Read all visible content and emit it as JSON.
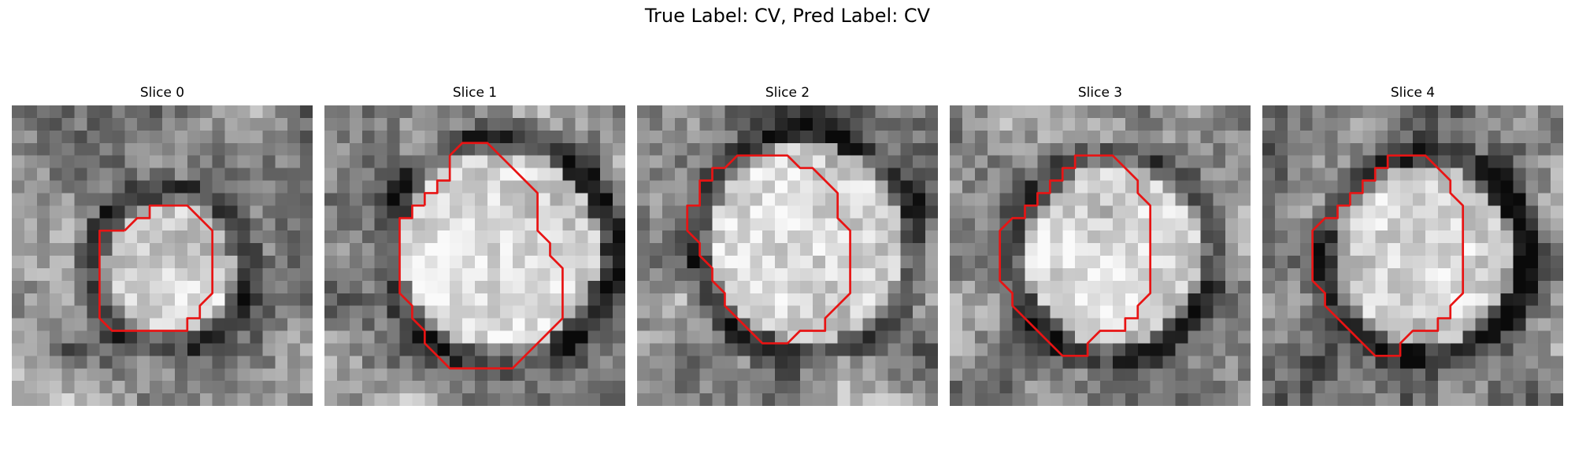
{
  "figure": {
    "suptitle": "True Label: CV, Pred Label: CV",
    "contour_color": "#e81414",
    "colormap": "gray",
    "panels": [
      {
        "title": "Slice 0",
        "seed": 11,
        "blob": {
          "cx": 12.5,
          "cy": 13.0,
          "r": 5.2,
          "bright": 0.28
        }
      },
      {
        "title": "Slice 1",
        "seed": 23,
        "blob": {
          "cx": 14.0,
          "cy": 11.5,
          "r": 8.0,
          "bright": 0.4
        }
      },
      {
        "title": "Slice 2",
        "seed": 37,
        "blob": {
          "cx": 13.5,
          "cy": 11.0,
          "r": 7.8,
          "bright": 0.35
        }
      },
      {
        "title": "Slice 3",
        "seed": 51,
        "blob": {
          "cx": 13.0,
          "cy": 12.0,
          "r": 7.0,
          "bright": 0.3
        }
      },
      {
        "title": "Slice 4",
        "seed": 67,
        "blob": {
          "cx": 13.0,
          "cy": 12.0,
          "r": 7.0,
          "bright": 0.3
        }
      }
    ],
    "contours": [
      [
        [
          9,
          10
        ],
        [
          10,
          9
        ],
        [
          11,
          9
        ],
        [
          11,
          8
        ],
        [
          14,
          8
        ],
        [
          15,
          9
        ],
        [
          16,
          10
        ],
        [
          16,
          15
        ],
        [
          15,
          16
        ],
        [
          15,
          17
        ],
        [
          14,
          17
        ],
        [
          14,
          18
        ],
        [
          8,
          18
        ],
        [
          7,
          17
        ],
        [
          7,
          10
        ]
      ],
      [
        [
          8,
          8
        ],
        [
          8,
          7
        ],
        [
          9,
          7
        ],
        [
          9,
          6
        ],
        [
          10,
          6
        ],
        [
          10,
          4
        ],
        [
          11,
          3
        ],
        [
          13,
          3
        ],
        [
          14,
          4
        ],
        [
          15,
          5
        ],
        [
          16,
          6
        ],
        [
          17,
          7
        ],
        [
          17,
          10
        ],
        [
          18,
          11
        ],
        [
          18,
          12
        ],
        [
          19,
          13
        ],
        [
          19,
          17
        ],
        [
          18,
          18
        ],
        [
          17,
          19
        ],
        [
          16,
          20
        ],
        [
          15,
          21
        ],
        [
          10,
          21
        ],
        [
          9,
          20
        ],
        [
          8,
          19
        ],
        [
          8,
          18
        ],
        [
          7,
          17
        ],
        [
          7,
          16
        ],
        [
          6,
          15
        ],
        [
          6,
          9
        ],
        [
          7,
          9
        ],
        [
          7,
          8
        ]
      ],
      [
        [
          5,
          7
        ],
        [
          5,
          6
        ],
        [
          6,
          6
        ],
        [
          6,
          5
        ],
        [
          7,
          5
        ],
        [
          8,
          4
        ],
        [
          12,
          4
        ],
        [
          13,
          5
        ],
        [
          14,
          5
        ],
        [
          15,
          6
        ],
        [
          16,
          7
        ],
        [
          16,
          9
        ],
        [
          17,
          10
        ],
        [
          17,
          15
        ],
        [
          16,
          16
        ],
        [
          15,
          17
        ],
        [
          15,
          18
        ],
        [
          13,
          18
        ],
        [
          12,
          19
        ],
        [
          10,
          19
        ],
        [
          9,
          18
        ],
        [
          8,
          17
        ],
        [
          7,
          16
        ],
        [
          7,
          15
        ],
        [
          6,
          14
        ],
        [
          6,
          13
        ],
        [
          5,
          12
        ],
        [
          5,
          11
        ],
        [
          4,
          10
        ],
        [
          4,
          8
        ],
        [
          5,
          8
        ]
      ],
      [
        [
          7,
          8
        ],
        [
          7,
          7
        ],
        [
          8,
          7
        ],
        [
          8,
          6
        ],
        [
          9,
          6
        ],
        [
          9,
          5
        ],
        [
          10,
          5
        ],
        [
          10,
          4
        ],
        [
          13,
          4
        ],
        [
          14,
          5
        ],
        [
          15,
          6
        ],
        [
          15,
          7
        ],
        [
          16,
          8
        ],
        [
          16,
          15
        ],
        [
          15,
          16
        ],
        [
          15,
          17
        ],
        [
          14,
          17
        ],
        [
          14,
          18
        ],
        [
          12,
          18
        ],
        [
          11,
          19
        ],
        [
          11,
          20
        ],
        [
          9,
          20
        ],
        [
          8,
          19
        ],
        [
          7,
          18
        ],
        [
          6,
          17
        ],
        [
          5,
          16
        ],
        [
          5,
          15
        ],
        [
          4,
          14
        ],
        [
          4,
          10
        ],
        [
          5,
          9
        ],
        [
          6,
          9
        ],
        [
          6,
          8
        ]
      ],
      [
        [
          7,
          8
        ],
        [
          7,
          7
        ],
        [
          8,
          7
        ],
        [
          8,
          6
        ],
        [
          9,
          6
        ],
        [
          9,
          5
        ],
        [
          10,
          5
        ],
        [
          10,
          4
        ],
        [
          13,
          4
        ],
        [
          14,
          5
        ],
        [
          15,
          6
        ],
        [
          15,
          7
        ],
        [
          16,
          8
        ],
        [
          16,
          15
        ],
        [
          15,
          16
        ],
        [
          15,
          17
        ],
        [
          14,
          17
        ],
        [
          14,
          18
        ],
        [
          12,
          18
        ],
        [
          11,
          19
        ],
        [
          11,
          20
        ],
        [
          9,
          20
        ],
        [
          8,
          19
        ],
        [
          7,
          18
        ],
        [
          6,
          17
        ],
        [
          5,
          16
        ],
        [
          5,
          15
        ],
        [
          4,
          14
        ],
        [
          4,
          10
        ],
        [
          5,
          9
        ],
        [
          6,
          9
        ],
        [
          6,
          8
        ]
      ]
    ]
  }
}
